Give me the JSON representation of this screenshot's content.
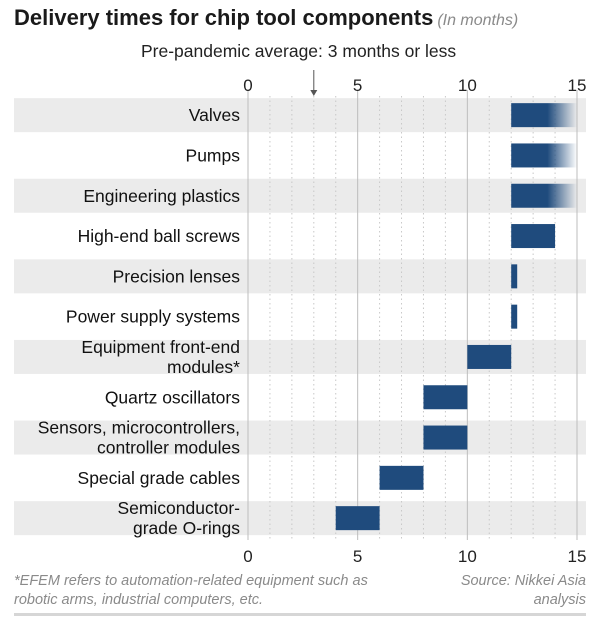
{
  "chart_data": {
    "type": "bar",
    "orientation": "horizontal-range",
    "title": "Delivery times for chip tool components",
    "units_note": "(In months)",
    "annotation": "Pre-pandemic average: 3 months or less",
    "reference_line": 3,
    "xlim": [
      0,
      15
    ],
    "x_ticks": [
      0,
      5,
      10,
      15
    ],
    "grid": true,
    "categories": [
      "Valves",
      "Pumps",
      "Engineering plastics",
      "High-end ball screws",
      "Precision lenses",
      "Power supply systems",
      "Equipment front-end modules*",
      "Quartz oscillators",
      "Sensors, microcontrollers, controller modules",
      "Special grade cables",
      "Semiconductor-grade O-rings"
    ],
    "label_lines": [
      [
        "Valves"
      ],
      [
        "Pumps"
      ],
      [
        "Engineering plastics"
      ],
      [
        "High-end ball screws"
      ],
      [
        "Precision lenses"
      ],
      [
        "Power supply systems"
      ],
      [
        "Equipment front-end",
        "modules*"
      ],
      [
        "Quartz oscillators"
      ],
      [
        "Sensors, microcontrollers,",
        "controller modules"
      ],
      [
        "Special grade cables"
      ],
      [
        "Semiconductor-",
        "grade O-rings"
      ]
    ],
    "ranges": [
      [
        12,
        15
      ],
      [
        12,
        15
      ],
      [
        12,
        15
      ],
      [
        12,
        14
      ],
      [
        12,
        12.2
      ],
      [
        12,
        12.2
      ],
      [
        10,
        12
      ],
      [
        8,
        10
      ],
      [
        8,
        10
      ],
      [
        6,
        8
      ],
      [
        4,
        6
      ]
    ],
    "open_ended": [
      true,
      true,
      true,
      false,
      false,
      false,
      false,
      false,
      false,
      false,
      false
    ]
  },
  "colors": {
    "bar": "#1f4b7d",
    "band": "#ebebeb",
    "grid_major": "#bdbdbd",
    "grid_minor": "#c8c8c8"
  },
  "footnote": "*EFEM refers to automation-related equipment such as robotic arms, industrial computers, etc.",
  "source": "Source: Nikkei Asia analysis"
}
